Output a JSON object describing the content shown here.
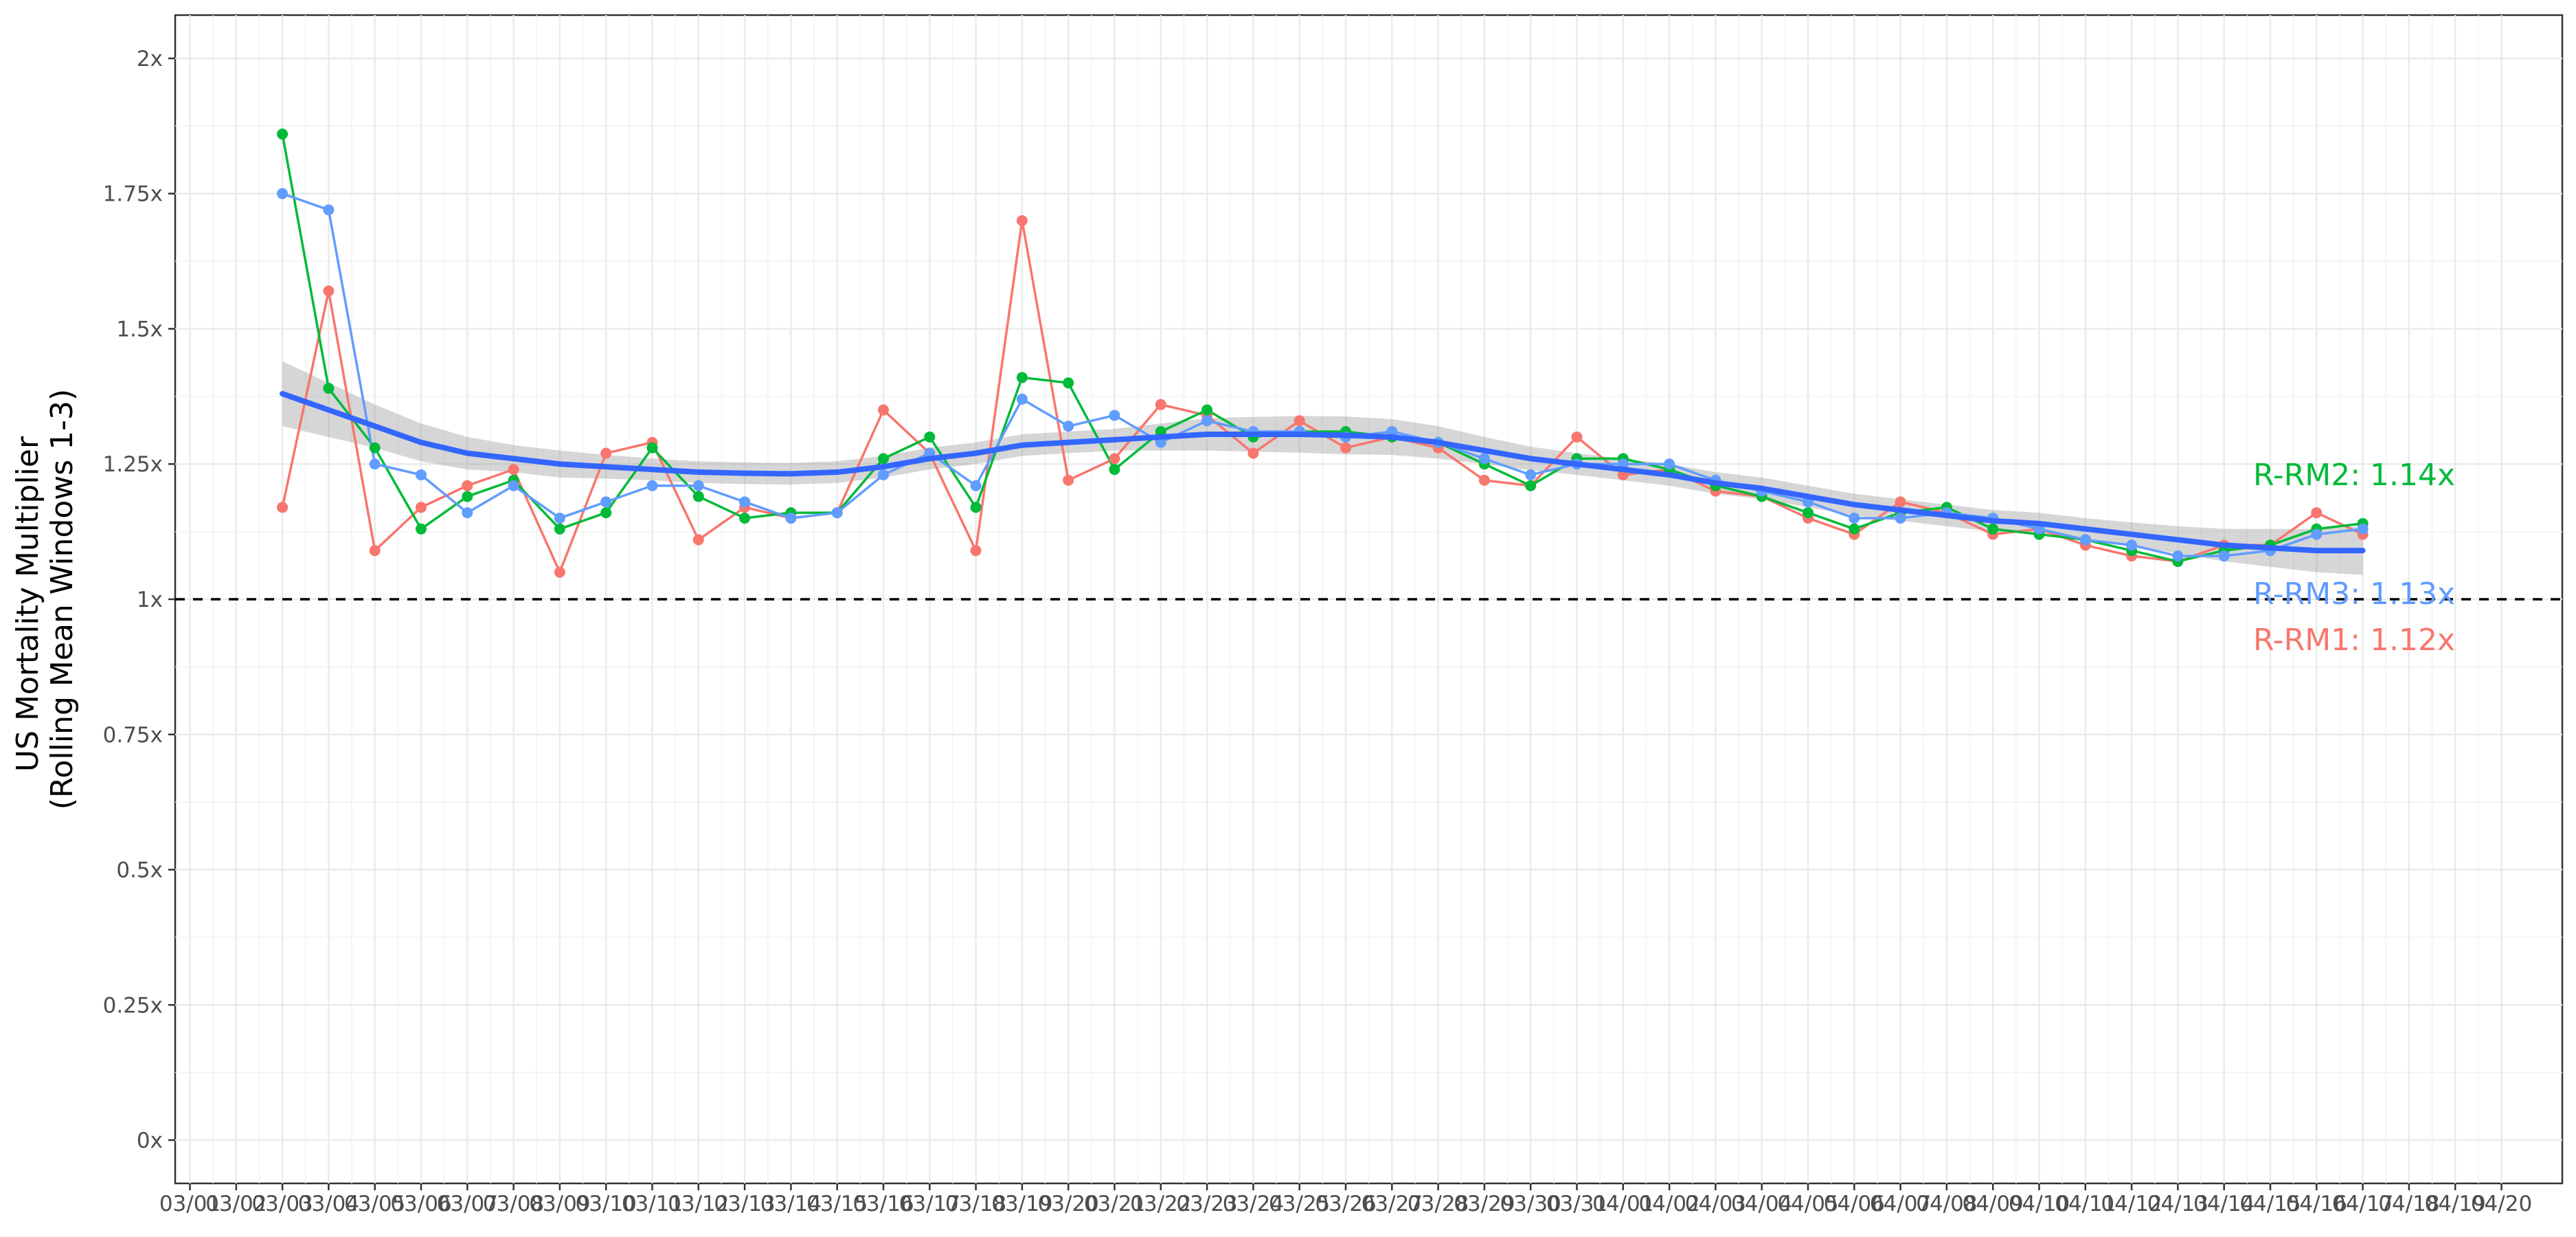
{
  "chart_data": {
    "type": "line",
    "title": "",
    "xlabel": "",
    "ylabel": "US Mortality Multiplier",
    "ylabel_line2": "(Rolling Mean Windows 1-3)",
    "ylim": [
      -0.08,
      2.08
    ],
    "y_ticks": [
      0,
      0.25,
      0.5,
      0.75,
      1,
      1.25,
      1.5,
      1.75,
      2
    ],
    "y_tick_labels": [
      "0x",
      "0.25x",
      "0.5x",
      "0.75x",
      "1x",
      "1.25x",
      "1.5x",
      "1.75x",
      "2x"
    ],
    "x_tick_labels": [
      "03/01",
      "03/02",
      "03/03",
      "03/04",
      "03/05",
      "03/06",
      "03/07",
      "03/08",
      "03/09",
      "03/10",
      "03/11",
      "03/12",
      "03/13",
      "03/14",
      "03/15",
      "03/16",
      "03/17",
      "03/18",
      "03/19",
      "03/20",
      "03/21",
      "03/22",
      "03/23",
      "03/24",
      "03/25",
      "03/26",
      "03/27",
      "03/28",
      "03/29",
      "03/30",
      "03/31",
      "04/01",
      "04/02",
      "04/03",
      "04/04",
      "04/05",
      "04/06",
      "04/07",
      "04/08",
      "04/09",
      "04/10",
      "04/11",
      "04/12",
      "04/13",
      "04/14",
      "04/15",
      "04/16",
      "04/17",
      "04/18",
      "04/19",
      "04/20"
    ],
    "x": [
      "03/03",
      "03/04",
      "03/05",
      "03/06",
      "03/07",
      "03/08",
      "03/09",
      "03/10",
      "03/11",
      "03/12",
      "03/13",
      "03/14",
      "03/15",
      "03/16",
      "03/17",
      "03/18",
      "03/19",
      "03/20",
      "03/21",
      "03/22",
      "03/23",
      "03/24",
      "03/25",
      "03/26",
      "03/27",
      "03/28",
      "03/29",
      "03/30",
      "03/31",
      "04/01",
      "04/02",
      "04/03",
      "04/04",
      "04/05",
      "04/06",
      "04/07",
      "04/08",
      "04/09",
      "04/10",
      "04/11",
      "04/12",
      "04/13",
      "04/14",
      "04/15",
      "04/16",
      "04/17"
    ],
    "reference_line": {
      "y": 1,
      "style": "dashed",
      "color": "#000000"
    },
    "grid": true,
    "series": [
      {
        "name": "R-RM1",
        "color": "#F8766D",
        "label": "R-RM1: 1.12x",
        "values": [
          1.17,
          1.57,
          1.09,
          1.17,
          1.21,
          1.24,
          1.05,
          1.27,
          1.29,
          1.11,
          1.17,
          1.15,
          1.16,
          1.35,
          1.27,
          1.09,
          1.7,
          1.22,
          1.26,
          1.36,
          1.34,
          1.27,
          1.33,
          1.28,
          1.3,
          1.28,
          1.22,
          1.21,
          1.3,
          1.23,
          1.24,
          1.2,
          1.19,
          1.15,
          1.12,
          1.18,
          1.16,
          1.12,
          1.13,
          1.1,
          1.08,
          1.07,
          1.1,
          1.1,
          1.16,
          1.12
        ]
      },
      {
        "name": "R-RM2",
        "color": "#00BA38",
        "label": "R-RM2: 1.14x",
        "values": [
          1.86,
          1.39,
          1.28,
          1.13,
          1.19,
          1.22,
          1.13,
          1.16,
          1.28,
          1.19,
          1.15,
          1.16,
          1.16,
          1.26,
          1.3,
          1.17,
          1.41,
          1.4,
          1.24,
          1.31,
          1.35,
          1.3,
          1.31,
          1.31,
          1.3,
          1.29,
          1.25,
          1.21,
          1.26,
          1.26,
          1.24,
          1.21,
          1.19,
          1.16,
          1.13,
          1.16,
          1.17,
          1.13,
          1.12,
          1.11,
          1.09,
          1.07,
          1.09,
          1.1,
          1.13,
          1.14
        ]
      },
      {
        "name": "R-RM3",
        "color": "#619CFF",
        "label": "R-RM3: 1.13x",
        "values": [
          1.75,
          1.72,
          1.25,
          1.23,
          1.16,
          1.21,
          1.15,
          1.18,
          1.21,
          1.21,
          1.18,
          1.15,
          1.16,
          1.23,
          1.27,
          1.21,
          1.37,
          1.32,
          1.34,
          1.29,
          1.33,
          1.31,
          1.31,
          1.3,
          1.31,
          1.29,
          1.26,
          1.23,
          1.25,
          1.25,
          1.25,
          1.22,
          1.2,
          1.18,
          1.15,
          1.15,
          1.16,
          1.15,
          1.13,
          1.11,
          1.1,
          1.08,
          1.08,
          1.09,
          1.12,
          1.13
        ]
      }
    ],
    "smooth": {
      "method": "loess",
      "color": "#3366FF",
      "band_color": "#999999",
      "values": [
        1.38,
        1.35,
        1.32,
        1.29,
        1.27,
        1.26,
        1.25,
        1.245,
        1.24,
        1.235,
        1.233,
        1.232,
        1.235,
        1.245,
        1.26,
        1.27,
        1.285,
        1.29,
        1.295,
        1.3,
        1.305,
        1.305,
        1.305,
        1.303,
        1.3,
        1.29,
        1.275,
        1.26,
        1.25,
        1.24,
        1.23,
        1.215,
        1.205,
        1.19,
        1.175,
        1.165,
        1.155,
        1.145,
        1.14,
        1.13,
        1.12,
        1.11,
        1.1,
        1.095,
        1.09,
        1.09
      ],
      "band_half_width": [
        0.06,
        0.05,
        0.04,
        0.035,
        0.03,
        0.025,
        0.025,
        0.022,
        0.02,
        0.02,
        0.02,
        0.02,
        0.02,
        0.02,
        0.02,
        0.02,
        0.02,
        0.02,
        0.02,
        0.025,
        0.03,
        0.032,
        0.034,
        0.035,
        0.033,
        0.03,
        0.025,
        0.022,
        0.02,
        0.02,
        0.02,
        0.02,
        0.02,
        0.02,
        0.02,
        0.02,
        0.02,
        0.02,
        0.02,
        0.02,
        0.022,
        0.025,
        0.03,
        0.035,
        0.04,
        0.045
      ]
    }
  }
}
